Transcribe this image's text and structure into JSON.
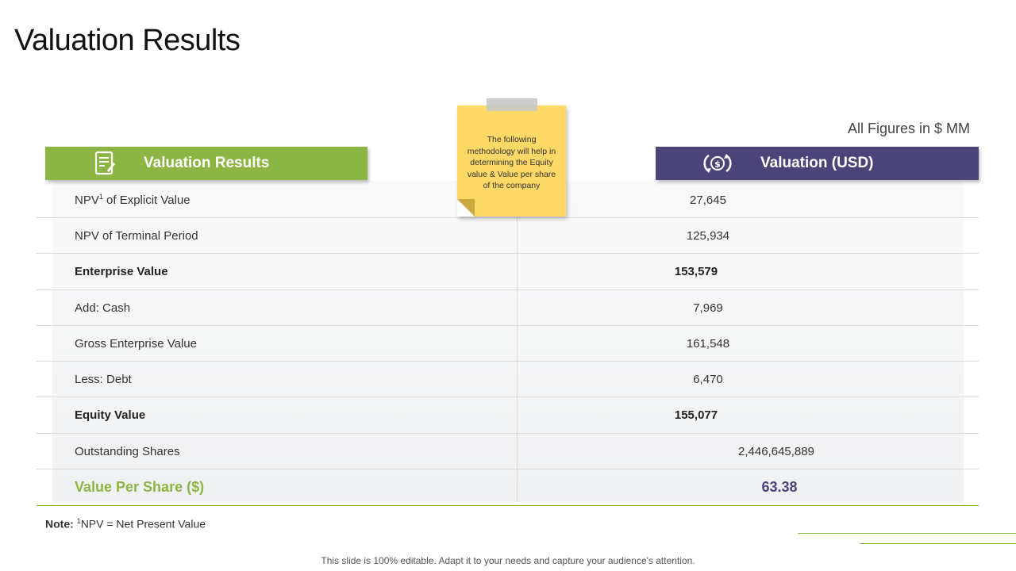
{
  "title": "Valuation Results",
  "figures_note": "All Figures in $ MM",
  "left_header": {
    "label": "Valuation Results",
    "icon": "document-icon"
  },
  "right_header": {
    "label": "Valuation (USD)",
    "icon": "dollar-cycle-icon"
  },
  "sticky_note": "The following methodology will help in determining the Equity value & Value per share of the company",
  "rows": [
    {
      "label": "NPV",
      "sup": "1",
      "label_rest": " of Explicit Value",
      "value": "27,645"
    },
    {
      "label": "NPV of Terminal Period",
      "value": "125,934"
    },
    {
      "label": "Enterprise Value",
      "value": "153,579"
    },
    {
      "label": "Add: Cash",
      "value": "7,969"
    },
    {
      "label": "Gross Enterprise Value",
      "value": "161,548"
    },
    {
      "label": "Less: Debt",
      "value": "6,470"
    },
    {
      "label": "Equity Value",
      "value": "155,077"
    },
    {
      "label": "Outstanding Shares",
      "value": "2,446,645,889"
    },
    {
      "label": "Value Per Share ($)",
      "value": "63.38"
    }
  ],
  "note": {
    "prefix": "Note:",
    "sup": "1",
    "text": "NPV = Net Present Value"
  },
  "footer": "This slide is 100% editable. Adapt it to your needs and capture your audience's attention.",
  "colors": {
    "green": "#8db543",
    "purple": "#4b4479",
    "sticky": "#fcd966"
  }
}
